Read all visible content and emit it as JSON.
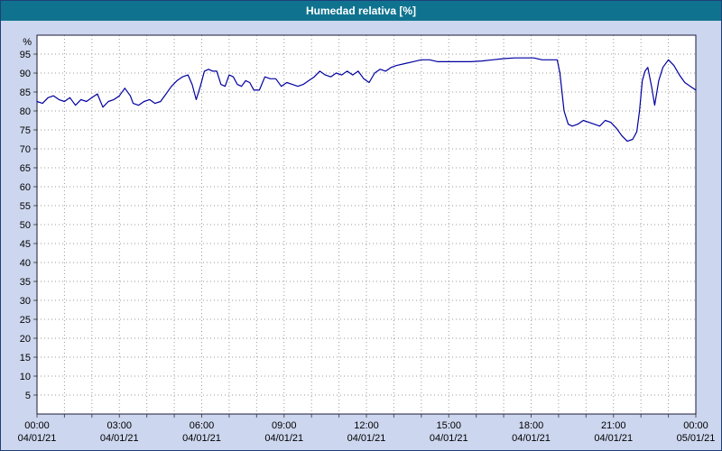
{
  "window": {
    "title": "Humedad relativa [%]"
  },
  "colors": {
    "titlebar_bg": "#0f7390",
    "titlebar_text": "#ffffff",
    "background": "#ccd6ee",
    "plot_bg": "#ffffff",
    "grid": "#9a9a9a",
    "axis": "#1a1a3a",
    "tick": "#555555",
    "line": "#0000a0"
  },
  "chart_data": {
    "type": "line",
    "title": "Humedad relativa [%]",
    "ylabel": "%",
    "ylim": [
      0,
      100
    ],
    "xlim_hours": [
      0,
      24
    ],
    "x_grid_step_hours": 1,
    "grid": "dotted",
    "legend": "none",
    "y_ticks": [
      5,
      10,
      15,
      20,
      25,
      30,
      35,
      40,
      45,
      50,
      55,
      60,
      65,
      70,
      75,
      80,
      85,
      90,
      95
    ],
    "x_ticks": [
      {
        "hour": 0,
        "time": "00:00",
        "date": "04/01/21"
      },
      {
        "hour": 3,
        "time": "03:00",
        "date": "04/01/21"
      },
      {
        "hour": 6,
        "time": "06:00",
        "date": "04/01/21"
      },
      {
        "hour": 9,
        "time": "09:00",
        "date": "04/01/21"
      },
      {
        "hour": 12,
        "time": "12:00",
        "date": "04/01/21"
      },
      {
        "hour": 15,
        "time": "15:00",
        "date": "04/01/21"
      },
      {
        "hour": 18,
        "time": "18:00",
        "date": "04/01/21"
      },
      {
        "hour": 21,
        "time": "21:00",
        "date": "04/01/21"
      },
      {
        "hour": 24,
        "time": "00:00",
        "date": "05/01/21"
      }
    ],
    "series": [
      {
        "name": "Humedad relativa",
        "color": "#0000a0",
        "points": [
          [
            0,
            82.5
          ],
          [
            0.2,
            82
          ],
          [
            0.4,
            83.5
          ],
          [
            0.6,
            84
          ],
          [
            0.8,
            83
          ],
          [
            1,
            82.5
          ],
          [
            1.2,
            83.5
          ],
          [
            1.4,
            81.5
          ],
          [
            1.6,
            83
          ],
          [
            1.8,
            82.5
          ],
          [
            2,
            83.5
          ],
          [
            2.2,
            84.5
          ],
          [
            2.4,
            81
          ],
          [
            2.6,
            82.5
          ],
          [
            2.8,
            83
          ],
          [
            3,
            84
          ],
          [
            3.2,
            86
          ],
          [
            3.4,
            84
          ],
          [
            3.5,
            82
          ],
          [
            3.7,
            81.5
          ],
          [
            3.9,
            82.5
          ],
          [
            4.1,
            83
          ],
          [
            4.3,
            82
          ],
          [
            4.5,
            82.5
          ],
          [
            4.7,
            84.5
          ],
          [
            4.9,
            86.5
          ],
          [
            5.1,
            88
          ],
          [
            5.3,
            89
          ],
          [
            5.5,
            89.5
          ],
          [
            5.65,
            87
          ],
          [
            5.8,
            83
          ],
          [
            5.95,
            86.5
          ],
          [
            6.1,
            90.5
          ],
          [
            6.25,
            91
          ],
          [
            6.4,
            90.5
          ],
          [
            6.55,
            90.5
          ],
          [
            6.7,
            87
          ],
          [
            6.85,
            86.5
          ],
          [
            7,
            89.5
          ],
          [
            7.15,
            89
          ],
          [
            7.3,
            87
          ],
          [
            7.45,
            86.5
          ],
          [
            7.6,
            88
          ],
          [
            7.75,
            87.5
          ],
          [
            7.9,
            85.5
          ],
          [
            8.1,
            85.5
          ],
          [
            8.3,
            89
          ],
          [
            8.5,
            88.5
          ],
          [
            8.7,
            88.5
          ],
          [
            8.9,
            86.5
          ],
          [
            9.1,
            87.5
          ],
          [
            9.3,
            87
          ],
          [
            9.5,
            86.5
          ],
          [
            9.7,
            87
          ],
          [
            9.9,
            88
          ],
          [
            10.1,
            89
          ],
          [
            10.3,
            90.5
          ],
          [
            10.5,
            89.5
          ],
          [
            10.7,
            89
          ],
          [
            10.9,
            90
          ],
          [
            11.1,
            89.5
          ],
          [
            11.3,
            90.5
          ],
          [
            11.5,
            89.5
          ],
          [
            11.7,
            90.5
          ],
          [
            11.9,
            88.5
          ],
          [
            12.1,
            87.5
          ],
          [
            12.3,
            90
          ],
          [
            12.5,
            91
          ],
          [
            12.7,
            90.5
          ],
          [
            12.9,
            91.5
          ],
          [
            13.1,
            92
          ],
          [
            13.4,
            92.5
          ],
          [
            13.7,
            93
          ],
          [
            14,
            93.5
          ],
          [
            14.3,
            93.5
          ],
          [
            14.6,
            93
          ],
          [
            15,
            93
          ],
          [
            15.4,
            93
          ],
          [
            15.8,
            93
          ],
          [
            16.2,
            93.2
          ],
          [
            16.6,
            93.5
          ],
          [
            17,
            93.8
          ],
          [
            17.4,
            94
          ],
          [
            17.8,
            94
          ],
          [
            18.1,
            94
          ],
          [
            18.4,
            93.5
          ],
          [
            18.7,
            93.5
          ],
          [
            18.95,
            93.5
          ],
          [
            19.05,
            90
          ],
          [
            19.2,
            80
          ],
          [
            19.35,
            76.5
          ],
          [
            19.5,
            76
          ],
          [
            19.7,
            76.5
          ],
          [
            19.9,
            77.5
          ],
          [
            20.1,
            77
          ],
          [
            20.3,
            76.5
          ],
          [
            20.5,
            76
          ],
          [
            20.7,
            77.5
          ],
          [
            20.9,
            77
          ],
          [
            21.1,
            75.5
          ],
          [
            21.3,
            73.5
          ],
          [
            21.5,
            72
          ],
          [
            21.7,
            72.5
          ],
          [
            21.85,
            74.5
          ],
          [
            21.95,
            80
          ],
          [
            22.05,
            88
          ],
          [
            22.15,
            90.5
          ],
          [
            22.25,
            91.5
          ],
          [
            22.4,
            86
          ],
          [
            22.5,
            81.5
          ],
          [
            22.65,
            88
          ],
          [
            22.8,
            91.5
          ],
          [
            23,
            93.5
          ],
          [
            23.2,
            92
          ],
          [
            23.4,
            89.5
          ],
          [
            23.6,
            87.5
          ],
          [
            23.8,
            86.5
          ],
          [
            24,
            85.5
          ]
        ]
      }
    ]
  }
}
